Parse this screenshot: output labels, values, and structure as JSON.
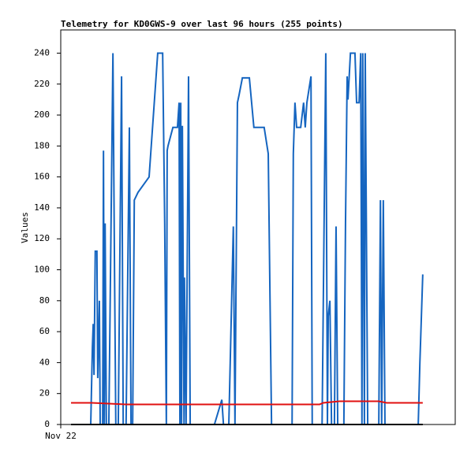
{
  "chart_data": {
    "type": "line",
    "title": "Telemetry for KD0GWS-9 over last 96 hours (255 points)",
    "y_label": "Values",
    "xlim": [
      0,
      96
    ],
    "xticks": [
      {
        "value": 0,
        "label": "Nov 22"
      }
    ],
    "ylim": [
      0,
      255
    ],
    "yticks": [
      0,
      20,
      40,
      60,
      80,
      100,
      120,
      140,
      160,
      180,
      200,
      220,
      240
    ],
    "series": [
      {
        "color": "#1565c0",
        "x": [
          7.3,
          7.7,
          7.9,
          8.1,
          8.4,
          8.8,
          9.0,
          9.4,
          9.6,
          10.2,
          10.4,
          10.6,
          10.8,
          11.1,
          11.7,
          12.7,
          13.1,
          13.4,
          14.0,
          14.8,
          15.2,
          15.6,
          15.9,
          16.7,
          17.1,
          17.5,
          17.9,
          18.8,
          21.5,
          23.6,
          24.8,
          25.3,
          25.7,
          25.9,
          26.1,
          27.3,
          28.4,
          28.8,
          29.0,
          29.2,
          29.4,
          29.6,
          30.0,
          30.1,
          30.5,
          31.1,
          31.5,
          37.4,
          39.2,
          39.6,
          40.9,
          42.0,
          42.4,
          43.0,
          43.4,
          44.2,
          45.9,
          47.0,
          49.5,
          50.5,
          51.3,
          56.3,
          56.6,
          57.0,
          57.4,
          58.4,
          59.1,
          59.5,
          59.9,
          60.9,
          61.2,
          63.6,
          64.5,
          64.9,
          65.1,
          65.5,
          65.9,
          66.6,
          67.0,
          67.4,
          68.4,
          68.9,
          69.3,
          69.7,
          69.9,
          70.5,
          71.6,
          72.0,
          72.6,
          73.0,
          73.3,
          73.5,
          73.9,
          74.1,
          74.7,
          77.4,
          77.8,
          78.1,
          78.5,
          78.9,
          87.0,
          87.4,
          88.1
        ],
        "values": [
          0,
          50,
          65,
          32,
          112,
          112,
          30,
          80,
          0,
          0,
          177,
          0,
          130,
          0,
          0,
          240,
          95,
          0,
          0,
          225,
          0,
          0,
          0,
          192,
          0,
          0,
          145,
          150,
          160,
          240,
          240,
          130,
          0,
          177,
          180,
          192,
          192,
          208,
          0,
          208,
          0,
          193,
          0,
          95,
          0,
          225,
          0,
          0,
          16,
          0,
          0,
          128,
          0,
          208,
          213,
          224,
          224,
          192,
          192,
          175,
          0,
          0,
          175,
          208,
          192,
          192,
          208,
          192,
          208,
          225,
          0,
          0,
          240,
          0,
          70,
          80,
          0,
          0,
          128,
          0,
          0,
          0,
          130,
          225,
          210,
          240,
          240,
          208,
          208,
          240,
          0,
          240,
          0,
          240,
          0,
          0,
          145,
          0,
          145,
          0,
          0,
          40,
          97
        ]
      },
      {
        "color": "#e01010",
        "x": [
          2.5,
          6.7,
          7.5,
          15.9,
          63.0,
          63.9,
          67.8,
          77.4,
          79.3,
          88.1
        ],
        "values": [
          14,
          14,
          14,
          13,
          13,
          14,
          15,
          15,
          14,
          14
        ]
      },
      {
        "color": "#000000",
        "x": [
          2.5,
          88.1
        ],
        "values": [
          0,
          0
        ]
      }
    ]
  }
}
